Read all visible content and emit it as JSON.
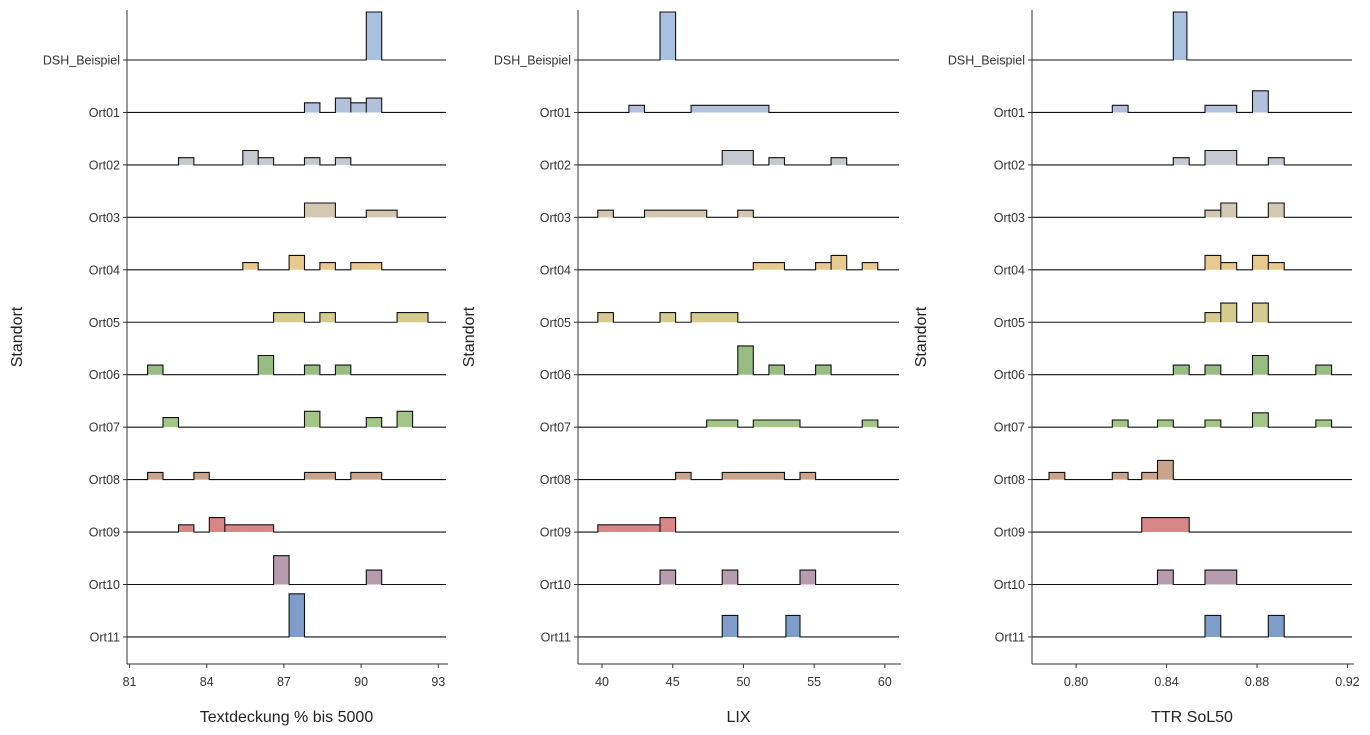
{
  "categories": [
    "DSH_Beispiel",
    "Ort01",
    "Ort02",
    "Ort03",
    "Ort04",
    "Ort05",
    "Ort06",
    "Ort07",
    "Ort08",
    "Ort09",
    "Ort10",
    "Ort11"
  ],
  "colors": [
    "#a9c1e1",
    "#b1c1dc",
    "#c6c8cf",
    "#d4c8b2",
    "#e8c98f",
    "#d5cb8f",
    "#97bd82",
    "#a3c687",
    "#c9a38a",
    "#d98686",
    "#b69cae",
    "#7e9ec9"
  ],
  "ylabel": "Standort",
  "chart_data": [
    {
      "type": "ridgeline-histogram",
      "xlabel": "Textdeckung % bis 5000",
      "ylabel": "Standort",
      "xlim": [
        80.9,
        93.3
      ],
      "xticks": [
        81,
        84,
        87,
        90,
        93
      ],
      "series": [
        {
          "name": "DSH_Beispiel",
          "bins": [
            [
              90.2,
              90.8,
              1.0
            ]
          ]
        },
        {
          "name": "Ort01",
          "bins": [
            [
              87.8,
              88.4,
              0.2
            ],
            [
              89.0,
              89.6,
              0.3
            ],
            [
              89.6,
              90.2,
              0.2
            ],
            [
              90.2,
              90.8,
              0.3
            ]
          ]
        },
        {
          "name": "Ort02",
          "bins": [
            [
              82.9,
              83.5,
              0.15
            ],
            [
              85.4,
              86.0,
              0.3
            ],
            [
              86.0,
              86.6,
              0.15
            ],
            [
              87.8,
              88.4,
              0.15
            ],
            [
              89.0,
              89.6,
              0.15
            ]
          ]
        },
        {
          "name": "Ort03",
          "bins": [
            [
              87.8,
              89.0,
              0.3
            ],
            [
              90.2,
              91.4,
              0.15
            ]
          ]
        },
        {
          "name": "Ort04",
          "bins": [
            [
              85.4,
              86.0,
              0.15
            ],
            [
              87.2,
              87.8,
              0.3
            ],
            [
              88.4,
              89.0,
              0.15
            ],
            [
              89.6,
              90.8,
              0.15
            ]
          ]
        },
        {
          "name": "Ort05",
          "bins": [
            [
              86.6,
              87.8,
              0.2
            ],
            [
              88.4,
              89.0,
              0.2
            ],
            [
              91.4,
              92.6,
              0.2
            ]
          ]
        },
        {
          "name": "Ort06",
          "bins": [
            [
              81.7,
              82.3,
              0.2
            ],
            [
              86.0,
              86.6,
              0.4
            ],
            [
              87.8,
              88.4,
              0.2
            ],
            [
              89.0,
              89.6,
              0.2
            ]
          ]
        },
        {
          "name": "Ort07",
          "bins": [
            [
              82.3,
              82.9,
              0.2
            ],
            [
              87.8,
              88.4,
              0.33
            ],
            [
              90.2,
              90.8,
              0.2
            ],
            [
              91.4,
              92.0,
              0.33
            ]
          ]
        },
        {
          "name": "Ort08",
          "bins": [
            [
              81.7,
              82.3,
              0.15
            ],
            [
              83.5,
              84.1,
              0.15
            ],
            [
              87.8,
              89.0,
              0.15
            ],
            [
              89.6,
              90.8,
              0.15
            ]
          ]
        },
        {
          "name": "Ort09",
          "bins": [
            [
              82.9,
              83.5,
              0.15
            ],
            [
              84.1,
              84.7,
              0.3
            ],
            [
              84.7,
              86.6,
              0.15
            ]
          ]
        },
        {
          "name": "Ort10",
          "bins": [
            [
              86.6,
              87.2,
              0.6
            ],
            [
              90.2,
              90.8,
              0.3
            ]
          ]
        },
        {
          "name": "Ort11",
          "bins": [
            [
              87.2,
              87.8,
              0.9
            ]
          ]
        }
      ]
    },
    {
      "type": "ridgeline-histogram",
      "xlabel": "LIX",
      "ylabel": "Standort",
      "xlim": [
        38.3,
        61.0
      ],
      "xticks": [
        40,
        45,
        50,
        55,
        60
      ],
      "series": [
        {
          "name": "DSH_Beispiel",
          "bins": [
            [
              44.1,
              45.2,
              1.0
            ]
          ]
        },
        {
          "name": "Ort01",
          "bins": [
            [
              41.9,
              43.0,
              0.15
            ],
            [
              46.3,
              51.8,
              0.15
            ]
          ]
        },
        {
          "name": "Ort02",
          "bins": [
            [
              48.5,
              50.7,
              0.3
            ],
            [
              51.8,
              52.9,
              0.15
            ],
            [
              56.2,
              57.3,
              0.15
            ]
          ]
        },
        {
          "name": "Ort03",
          "bins": [
            [
              39.7,
              40.8,
              0.15
            ],
            [
              43.0,
              47.4,
              0.15
            ],
            [
              49.6,
              50.7,
              0.15
            ]
          ]
        },
        {
          "name": "Ort04",
          "bins": [
            [
              50.7,
              52.9,
              0.15
            ],
            [
              55.1,
              56.2,
              0.15
            ],
            [
              56.2,
              57.3,
              0.3
            ],
            [
              58.4,
              59.5,
              0.15
            ]
          ]
        },
        {
          "name": "Ort05",
          "bins": [
            [
              39.7,
              40.8,
              0.2
            ],
            [
              44.1,
              45.2,
              0.2
            ],
            [
              46.3,
              49.6,
              0.2
            ]
          ]
        },
        {
          "name": "Ort06",
          "bins": [
            [
              49.6,
              50.7,
              0.6
            ],
            [
              51.8,
              52.9,
              0.2
            ],
            [
              55.1,
              56.2,
              0.2
            ]
          ]
        },
        {
          "name": "Ort07",
          "bins": [
            [
              47.4,
              49.6,
              0.15
            ],
            [
              50.7,
              54.0,
              0.15
            ],
            [
              58.4,
              59.5,
              0.15
            ]
          ]
        },
        {
          "name": "Ort08",
          "bins": [
            [
              45.2,
              46.3,
              0.15
            ],
            [
              48.5,
              52.9,
              0.15
            ],
            [
              54.0,
              55.1,
              0.15
            ]
          ]
        },
        {
          "name": "Ort09",
          "bins": [
            [
              39.7,
              44.1,
              0.15
            ],
            [
              44.1,
              45.2,
              0.3
            ]
          ]
        },
        {
          "name": "Ort10",
          "bins": [
            [
              44.1,
              45.2,
              0.3
            ],
            [
              48.5,
              49.6,
              0.3
            ],
            [
              54.0,
              55.1,
              0.3
            ]
          ]
        },
        {
          "name": "Ort11",
          "bins": [
            [
              48.5,
              49.6,
              0.45
            ],
            [
              53.0,
              54.0,
              0.45
            ]
          ]
        }
      ]
    },
    {
      "type": "ridgeline-histogram",
      "xlabel": "TTR SoL50",
      "ylabel": "Standort",
      "xlim": [
        0.7805,
        0.922
      ],
      "xticks": [
        "0.80",
        "0.84",
        "0.88",
        "0.92"
      ],
      "series": [
        {
          "name": "DSH_Beispiel",
          "bins": [
            [
              0.843,
              0.849,
              1.0
            ]
          ]
        },
        {
          "name": "Ort01",
          "bins": [
            [
              0.816,
              0.823,
              0.15
            ],
            [
              0.857,
              0.871,
              0.15
            ],
            [
              0.878,
              0.885,
              0.45
            ]
          ]
        },
        {
          "name": "Ort02",
          "bins": [
            [
              0.843,
              0.85,
              0.15
            ],
            [
              0.857,
              0.871,
              0.3
            ],
            [
              0.885,
              0.892,
              0.15
            ]
          ]
        },
        {
          "name": "Ort03",
          "bins": [
            [
              0.857,
              0.864,
              0.15
            ],
            [
              0.864,
              0.871,
              0.3
            ],
            [
              0.885,
              0.892,
              0.3
            ]
          ]
        },
        {
          "name": "Ort04",
          "bins": [
            [
              0.857,
              0.864,
              0.3
            ],
            [
              0.864,
              0.871,
              0.15
            ],
            [
              0.878,
              0.885,
              0.3
            ],
            [
              0.885,
              0.892,
              0.15
            ]
          ]
        },
        {
          "name": "Ort05",
          "bins": [
            [
              0.857,
              0.864,
              0.2
            ],
            [
              0.864,
              0.871,
              0.4
            ],
            [
              0.878,
              0.885,
              0.4
            ]
          ]
        },
        {
          "name": "Ort06",
          "bins": [
            [
              0.843,
              0.85,
              0.2
            ],
            [
              0.857,
              0.864,
              0.2
            ],
            [
              0.878,
              0.885,
              0.4
            ],
            [
              0.906,
              0.913,
              0.2
            ]
          ]
        },
        {
          "name": "Ort07",
          "bins": [
            [
              0.816,
              0.823,
              0.15
            ],
            [
              0.836,
              0.843,
              0.15
            ],
            [
              0.857,
              0.864,
              0.15
            ],
            [
              0.878,
              0.885,
              0.3
            ],
            [
              0.906,
              0.913,
              0.15
            ]
          ]
        },
        {
          "name": "Ort08",
          "bins": [
            [
              0.788,
              0.795,
              0.15
            ],
            [
              0.816,
              0.823,
              0.15
            ],
            [
              0.829,
              0.836,
              0.15
            ],
            [
              0.836,
              0.843,
              0.4
            ]
          ]
        },
        {
          "name": "Ort09",
          "bins": [
            [
              0.829,
              0.85,
              0.3
            ]
          ]
        },
        {
          "name": "Ort10",
          "bins": [
            [
              0.836,
              0.843,
              0.3
            ],
            [
              0.857,
              0.871,
              0.3
            ]
          ]
        },
        {
          "name": "Ort11",
          "bins": [
            [
              0.857,
              0.864,
              0.45
            ],
            [
              0.885,
              0.892,
              0.45
            ]
          ]
        }
      ]
    }
  ]
}
